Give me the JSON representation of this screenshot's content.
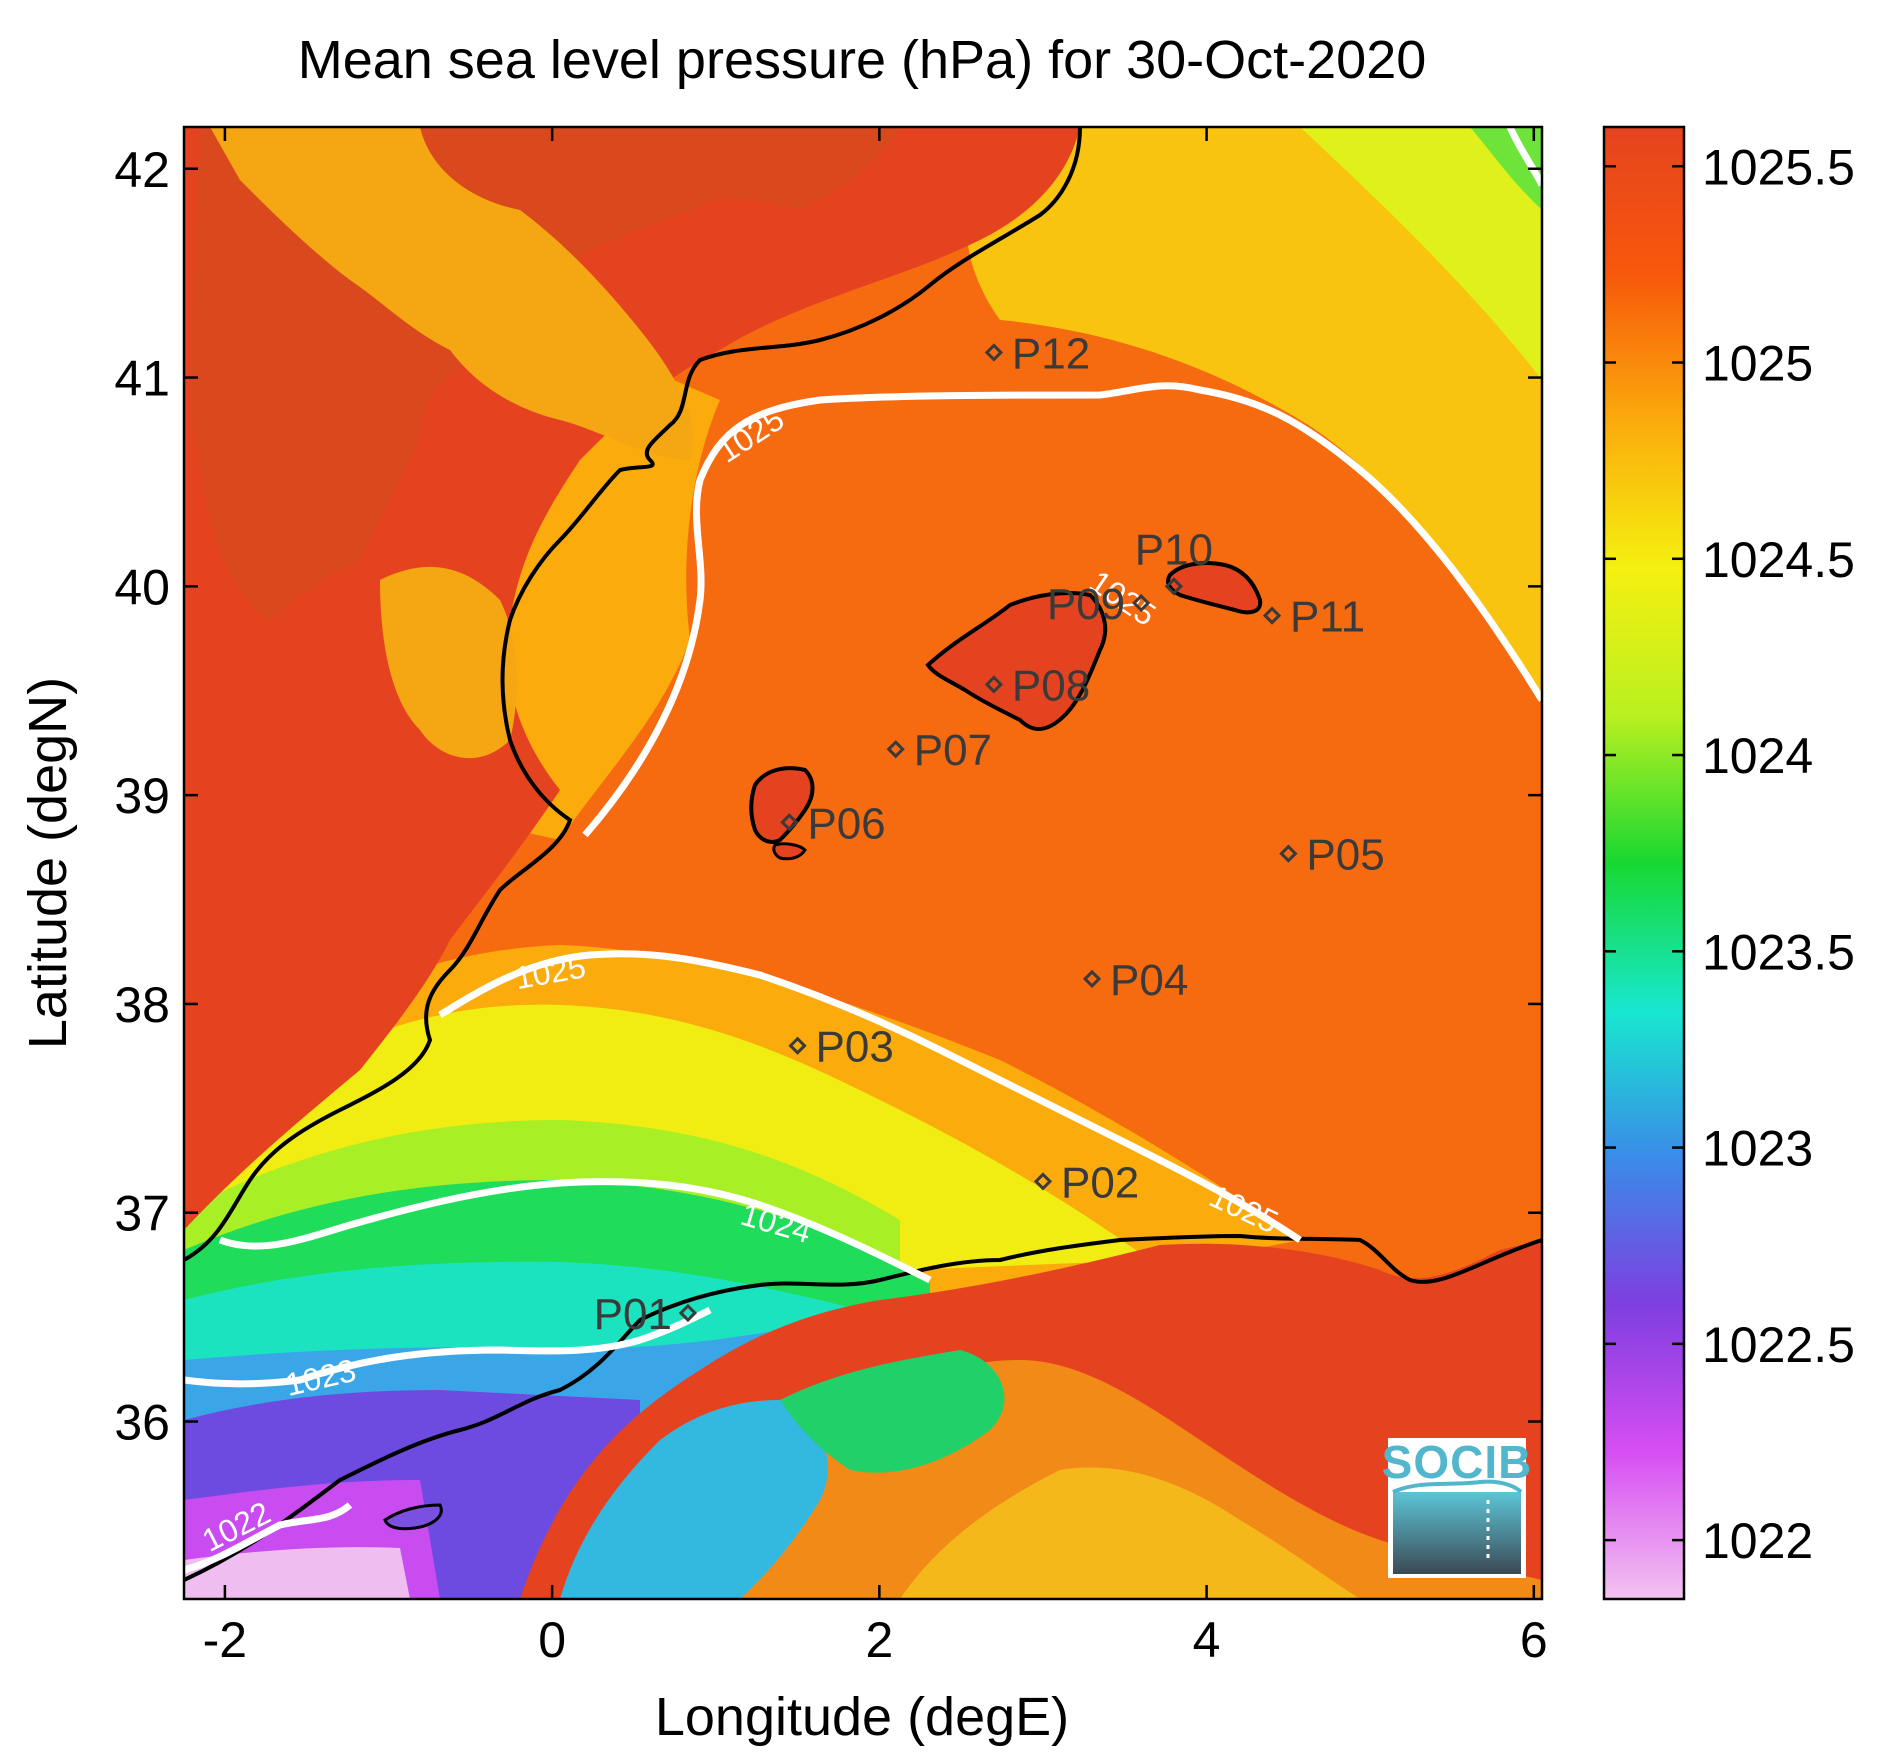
{
  "title": "Mean sea level pressure (hPa) for 30-Oct-2020",
  "xlabel": "Longitude (degE)",
  "ylabel": "Latitude (degN)",
  "logo_text": "SOCIB",
  "map": {
    "xlim": [
      -2.25,
      6.05
    ],
    "ylim": [
      35.15,
      42.2
    ],
    "x_ticks": [
      {
        "value": -2,
        "label": "-2"
      },
      {
        "value": 0,
        "label": "0"
      },
      {
        "value": 2,
        "label": "2"
      },
      {
        "value": 4,
        "label": "4"
      },
      {
        "value": 6,
        "label": "6"
      }
    ],
    "y_ticks": [
      {
        "value": 36,
        "label": "36"
      },
      {
        "value": 37,
        "label": "37"
      },
      {
        "value": 38,
        "label": "38"
      },
      {
        "value": 39,
        "label": "39"
      },
      {
        "value": 40,
        "label": "40"
      },
      {
        "value": 41,
        "label": "41"
      },
      {
        "value": 42,
        "label": "42"
      }
    ]
  },
  "colorbar": {
    "min": 1021.85,
    "max": 1025.6,
    "colors": [
      "#f3c3f0",
      "#d64ef2",
      "#7f3ee0",
      "#3a8ce8",
      "#18e7cf",
      "#18d832",
      "#b9f020",
      "#f5f010",
      "#fbab0c",
      "#f7580b",
      "#e54320"
    ],
    "ticks": [
      {
        "value": 1022,
        "label": "1022"
      },
      {
        "value": 1022.5,
        "label": "1022.5"
      },
      {
        "value": 1023,
        "label": "1023"
      },
      {
        "value": 1023.5,
        "label": "1023.5"
      },
      {
        "value": 1024,
        "label": "1024"
      },
      {
        "value": 1024.5,
        "label": "1024.5"
      },
      {
        "value": 1025,
        "label": "1025"
      },
      {
        "value": 1025.5,
        "label": "1025.5"
      }
    ]
  },
  "stations": [
    {
      "name": "P01",
      "lon": 0.83,
      "lat": 36.52,
      "label_side": "left"
    },
    {
      "name": "P02",
      "lon": 3.0,
      "lat": 37.15,
      "label_side": "right"
    },
    {
      "name": "P03",
      "lon": 1.5,
      "lat": 37.8,
      "label_side": "right"
    },
    {
      "name": "P04",
      "lon": 3.3,
      "lat": 38.12,
      "label_side": "right"
    },
    {
      "name": "P05",
      "lon": 4.5,
      "lat": 38.72,
      "label_side": "right"
    },
    {
      "name": "P06",
      "lon": 1.45,
      "lat": 38.87,
      "label_side": "right"
    },
    {
      "name": "P07",
      "lon": 2.1,
      "lat": 39.22,
      "label_side": "right"
    },
    {
      "name": "P08",
      "lon": 2.7,
      "lat": 39.53,
      "label_side": "right"
    },
    {
      "name": "P09",
      "lon": 3.6,
      "lat": 39.92,
      "label_side": "left"
    },
    {
      "name": "P10",
      "lon": 3.8,
      "lat": 40.0,
      "label_side": "top"
    },
    {
      "name": "P11",
      "lon": 4.4,
      "lat": 39.86,
      "label_side": "right"
    },
    {
      "name": "P12",
      "lon": 2.7,
      "lat": 41.12,
      "label_side": "right"
    }
  ],
  "contour_labels": [
    {
      "text": "1025",
      "lon": 1.25,
      "lat": 40.68,
      "angle": -33
    },
    {
      "text": "1025",
      "lon": 0.0,
      "lat": 38.1,
      "angle": -10
    },
    {
      "text": "1025",
      "lon": 3.45,
      "lat": 39.9,
      "angle": 34
    },
    {
      "text": "1025",
      "lon": 4.2,
      "lat": 36.97,
      "angle": 25
    },
    {
      "text": "1024",
      "lon": 1.35,
      "lat": 36.9,
      "angle": 16
    },
    {
      "text": "1023",
      "lon": -1.4,
      "lat": 36.16,
      "angle": -13
    },
    {
      "text": "1022",
      "lon": -1.9,
      "lat": 35.45,
      "angle": -27
    }
  ]
}
